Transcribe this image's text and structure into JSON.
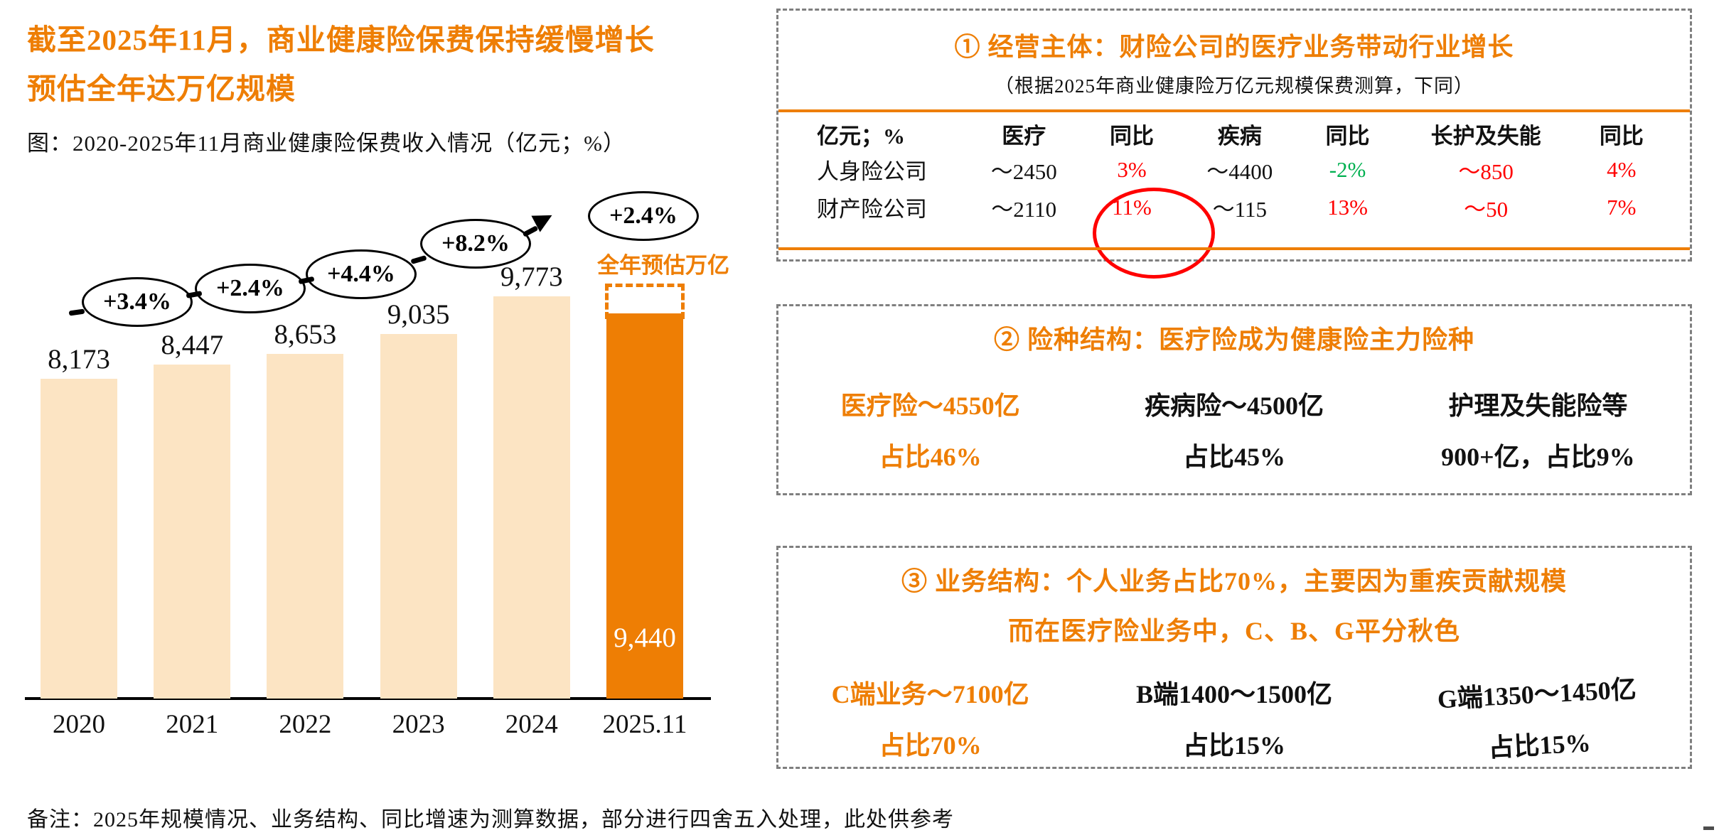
{
  "page": {
    "title_line1": "截至2025年11月，商业健康险保费保持缓慢增长",
    "title_line2": "预估全年达万亿规模",
    "chart_caption": "图：2020-2025年11月商业健康险保费收入情况（亿元；%）",
    "footnote": "备注：2025年规模情况、业务结构、同比增速为测算数据，部分进行四舍五入处理，此处供参考"
  },
  "colors": {
    "accent_orange": "#EE7E04",
    "bar_light": "#FCE4C3",
    "bar_orange": "#EE7E04",
    "red": "#FF0000",
    "green": "#00B050",
    "panel_border_gray": "#7F7F7F",
    "axis_black": "#000000"
  },
  "chart_data": {
    "type": "bar",
    "title": "图：2020-2025年11月商业健康险保费收入情况（亿元；%）",
    "unit": "亿元；%",
    "categories": [
      "2020",
      "2021",
      "2022",
      "2023",
      "2024",
      "2025.11"
    ],
    "values": [
      8173,
      8447,
      8653,
      9035,
      9773,
      9440
    ],
    "value_labels": [
      "8,173",
      "8,447",
      "8,653",
      "9,035",
      "9,773",
      "9,440"
    ],
    "growth_labels": [
      "+3.4%",
      "+2.4%",
      "+4.4%",
      "+8.2%",
      "+2.4%"
    ],
    "highlight_index": 5,
    "estimate_value": 10000,
    "estimate_label": "全年预估万亿",
    "ylim": [
      6500,
      10500
    ],
    "grid": false,
    "legend": "none"
  },
  "panel1": {
    "title": "① 经营主体：财险公司的医疗业务带动行业增长",
    "subtitle": "（根据2025年商业健康险万亿元规模保费测算，下同）",
    "table": {
      "headers": [
        "亿元；%",
        "医疗",
        "同比",
        "疾病",
        "同比",
        "长护及失能",
        "同比"
      ],
      "rows": [
        {
          "cells": [
            "人身险公司",
            "～2450",
            "3%",
            "～4400",
            "-2%",
            "～850",
            "4%"
          ]
        },
        {
          "cells": [
            "财产险公司",
            "～2110",
            "11%",
            "～115",
            "13%",
            "～50",
            "7%"
          ]
        }
      ],
      "circled_cell": "11%"
    }
  },
  "panel2": {
    "title": "② 险种结构：医疗险成为健康险主力险种",
    "items": [
      {
        "line1": "医疗险～4550亿",
        "line2": "占比46%"
      },
      {
        "line1": "疾病险～4500亿",
        "line2": "占比45%"
      },
      {
        "line1": "护理及失能险等",
        "line2": "900+亿，占比9%"
      }
    ]
  },
  "panel3": {
    "title_line1": "③ 业务结构：个人业务占比70%，主要因为重疾贡献规模",
    "title_line2": "而在医疗险业务中，C、B、G平分秋色",
    "items": [
      {
        "line1": "C端业务～7100亿",
        "line2": "占比70%"
      },
      {
        "line1": "B端1400～1500亿",
        "line2": "占比15%"
      },
      {
        "line1": "G端1350～1450亿",
        "line2": "占比15%"
      }
    ]
  }
}
